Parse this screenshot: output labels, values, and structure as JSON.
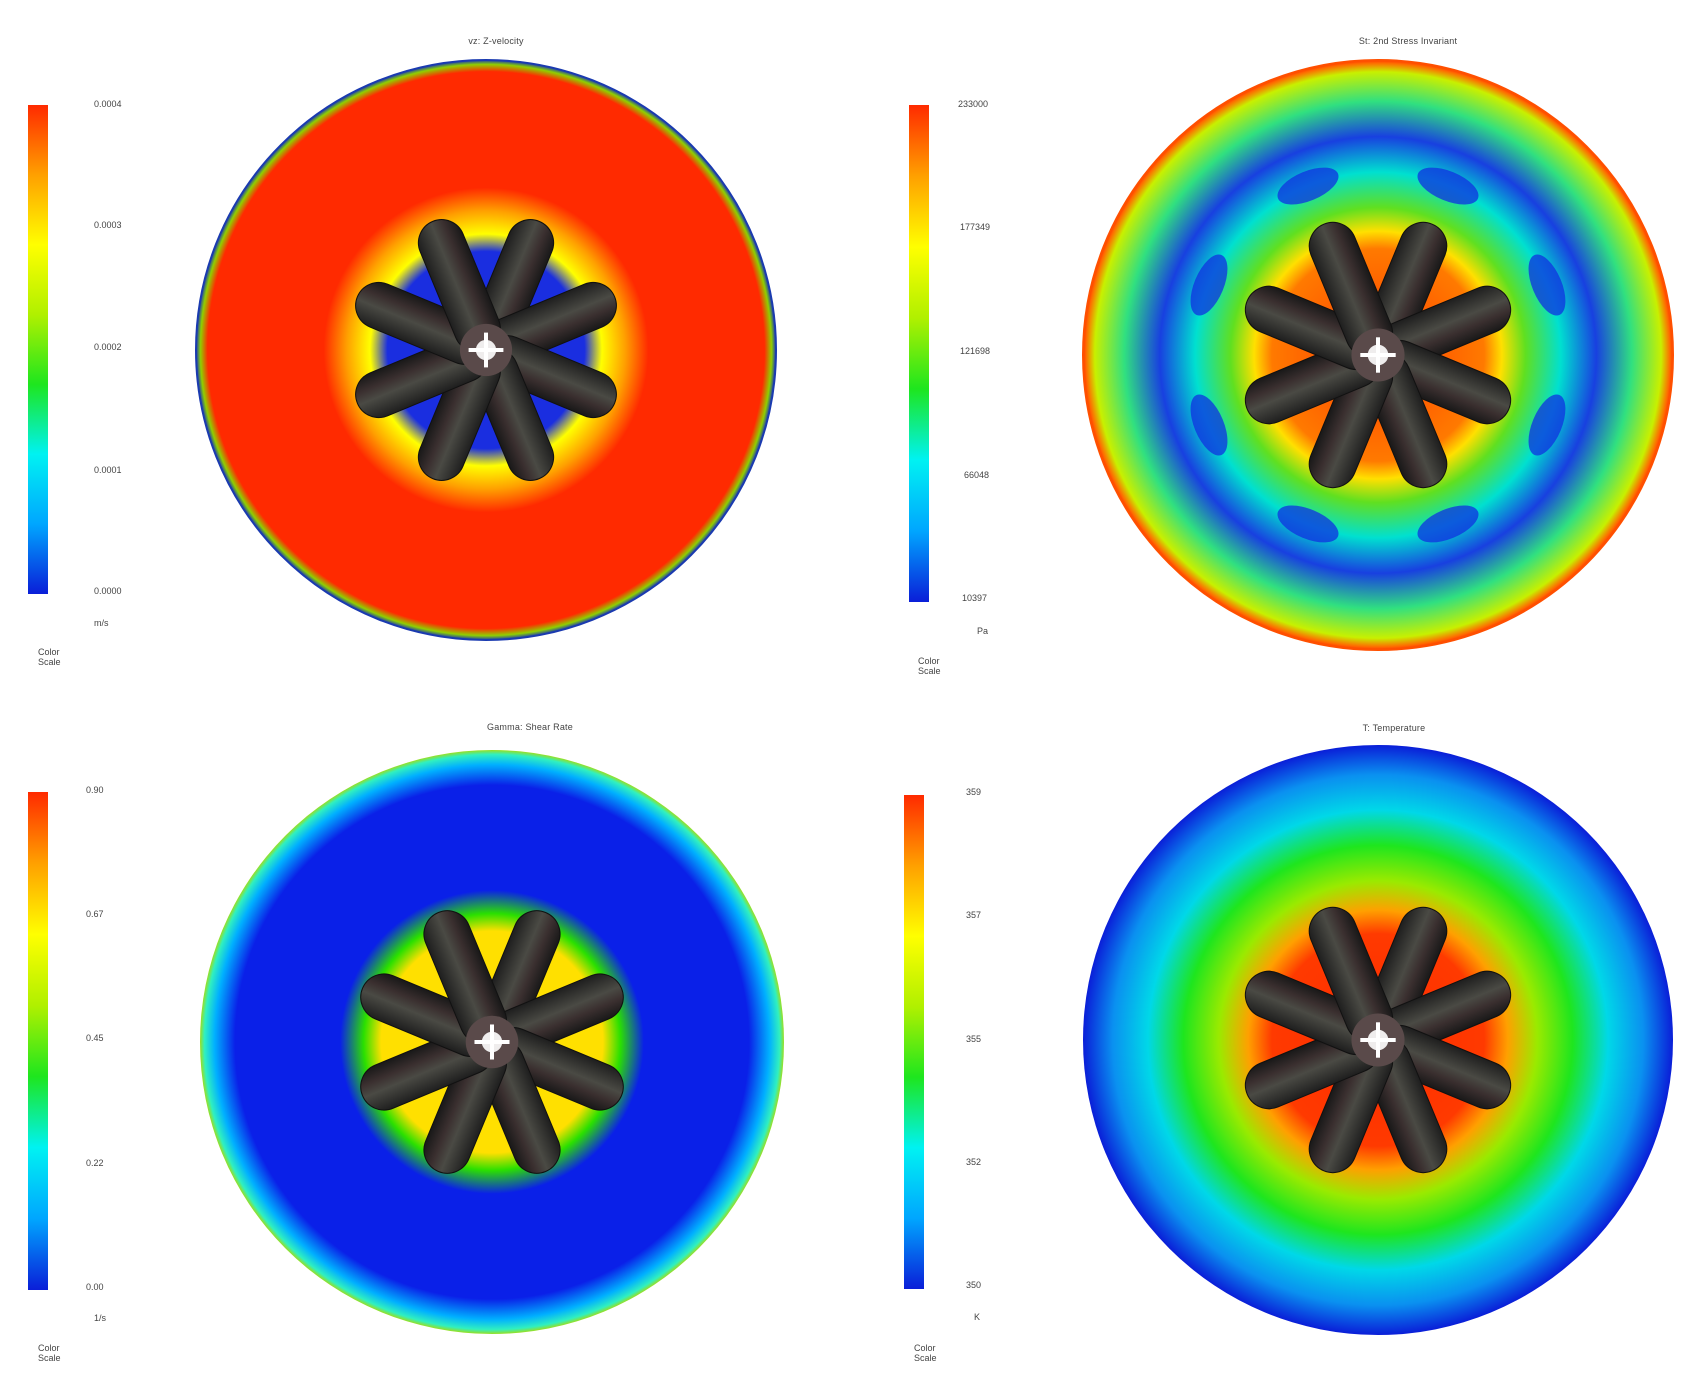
{
  "colors": {
    "scale": [
      "#0a1ed8",
      "#00a6ff",
      "#00f2f2",
      "#1ee61e",
      "#b0f000",
      "#ffff00",
      "#ffa000",
      "#ff2a00"
    ],
    "rotor_dark": "#2b2b2b"
  },
  "panels": [
    {
      "title": "vz: Z-velocity",
      "ticks": [
        "0.0004",
        "0.0003",
        "0.0002",
        "0.0001",
        "0.0000"
      ],
      "unit": "m/s",
      "scale_label": "Color Scale",
      "field": "velocity"
    },
    {
      "title": "St: 2nd Stress Invariant",
      "ticks": [
        "233000",
        "177349",
        "121698",
        "66048",
        "10397"
      ],
      "unit": "Pa",
      "scale_label": "Color Scale",
      "field": "stress"
    },
    {
      "title": "Gamma: Shear Rate",
      "ticks": [
        "0.90",
        "0.67",
        "0.45",
        "0.22",
        "0.00"
      ],
      "unit": "1/s",
      "scale_label": "Color Scale",
      "field": "shear"
    },
    {
      "title": "T: Temperature",
      "ticks": [
        "359",
        "357",
        "355",
        "352",
        "350"
      ],
      "unit": "K",
      "scale_label": "Color Scale",
      "field": "temperature"
    }
  ]
}
